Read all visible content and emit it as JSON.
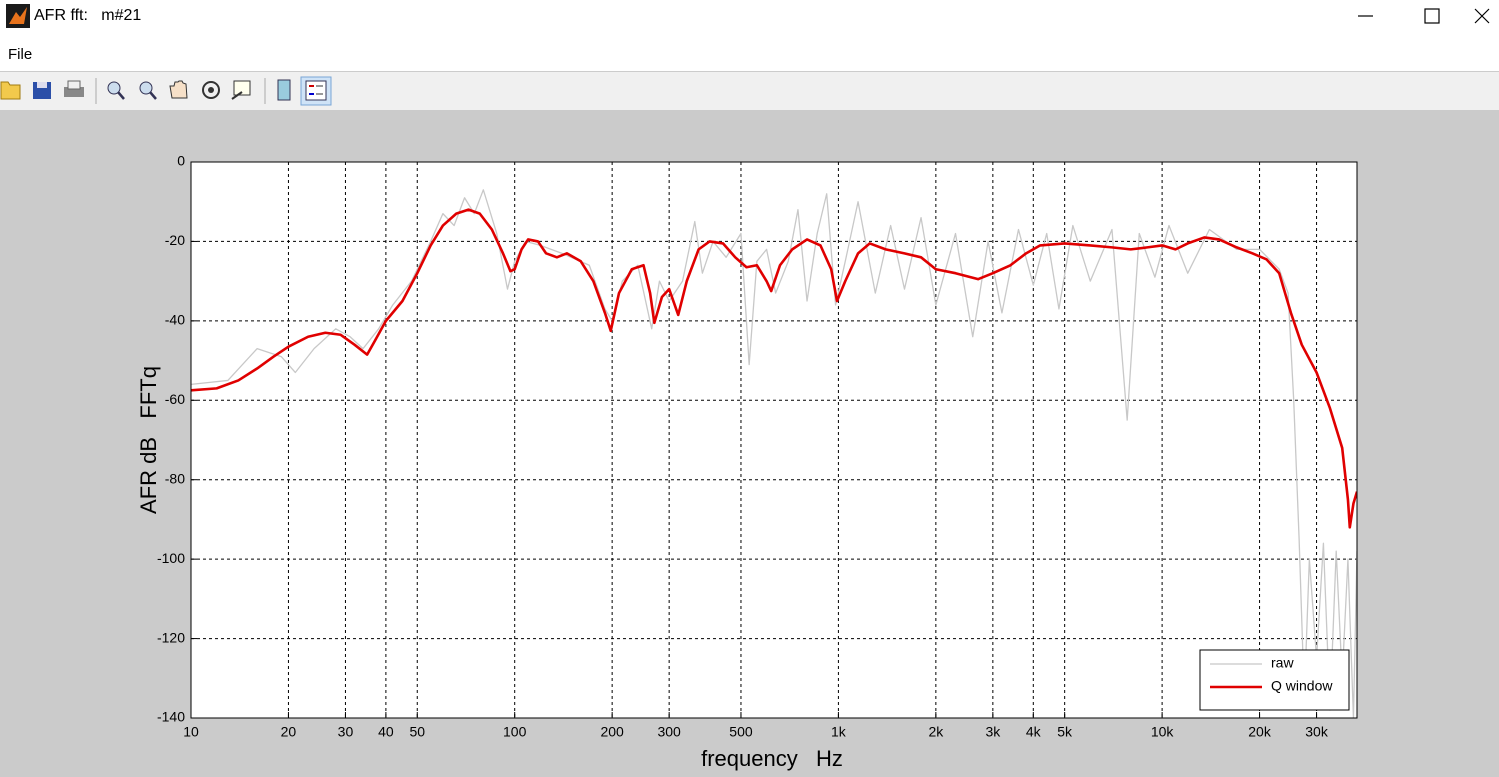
{
  "window": {
    "title": "AFR fft:   m#21",
    "menu": [
      "File"
    ]
  },
  "chart_data": {
    "type": "line",
    "xlabel": "frequency   Hz",
    "ylabel": "AFR dB   FFTq",
    "xscale": "log",
    "grid": true,
    "legend": "lower right",
    "xlim": [
      10,
      40000
    ],
    "ylim": [
      -140,
      0
    ],
    "xticks": [
      10,
      20,
      30,
      40,
      50,
      100,
      200,
      300,
      500,
      {
        "value": 1000,
        "label": "1k"
      },
      {
        "value": 2000,
        "label": "2k"
      },
      {
        "value": 3000,
        "label": "3k"
      },
      {
        "value": 4000,
        "label": "4k"
      },
      {
        "value": 5000,
        "label": "5k"
      },
      {
        "value": 10000,
        "label": "10k"
      },
      {
        "value": 20000,
        "label": "20k"
      },
      {
        "value": 30000,
        "label": "30k"
      }
    ],
    "yticks": [
      0,
      -20,
      -40,
      -60,
      -80,
      -100,
      -120,
      -140
    ],
    "series": [
      {
        "name": "raw",
        "color": "#c8c8c8",
        "x": [
          10,
          13,
          16,
          19,
          21,
          24,
          28,
          31,
          34,
          38,
          42,
          48,
          55,
          60,
          65,
          70,
          75,
          80,
          88,
          95,
          100,
          108,
          120,
          140,
          170,
          190,
          200,
          215,
          240,
          265,
          280,
          300,
          330,
          360,
          380,
          410,
          450,
          500,
          530,
          560,
          600,
          640,
          700,
          750,
          800,
          860,
          920,
          980,
          1050,
          1150,
          1300,
          1450,
          1600,
          1800,
          2000,
          2300,
          2600,
          2900,
          3200,
          3600,
          4000,
          4400,
          4800,
          5300,
          6000,
          7000,
          7800,
          8500,
          9500,
          10500,
          12000,
          14000,
          17000,
          20000,
          23000,
          24500,
          25500,
          26500,
          27500,
          28500,
          30000,
          31500,
          33000,
          34500,
          36000,
          37500,
          39000,
          40000
        ],
        "values": [
          -56,
          -55,
          -47,
          -49,
          -53,
          -47,
          -42,
          -44,
          -47,
          -42,
          -36,
          -30,
          -20,
          -13,
          -16,
          -9,
          -13,
          -7,
          -18,
          -32,
          -25,
          -20,
          -21,
          -23,
          -26,
          -37,
          -40,
          -30,
          -26,
          -42,
          -30,
          -35,
          -30,
          -15,
          -28,
          -20,
          -24,
          -18,
          -51,
          -25,
          -22,
          -33,
          -25,
          -12,
          -35,
          -18,
          -8,
          -36,
          -25,
          -10,
          -33,
          -16,
          -32,
          -14,
          -36,
          -18,
          -44,
          -20,
          -38,
          -17,
          -31,
          -18,
          -37,
          -16,
          -30,
          -17,
          -65,
          -18,
          -29,
          -16,
          -28,
          -17,
          -22,
          -22,
          -27,
          -33,
          -60,
          -95,
          -135,
          -100,
          -125,
          -96,
          -138,
          -98,
          -130,
          -100,
          -140,
          -98
        ]
      },
      {
        "name": "Q window",
        "color": "#e00000",
        "x": [
          10,
          12,
          14,
          16,
          18,
          20,
          23,
          26,
          29,
          32,
          35,
          37,
          40,
          45,
          50,
          55,
          60,
          66,
          72,
          78,
          85,
          92,
          97,
          100,
          105,
          110,
          118,
          125,
          135,
          145,
          160,
          175,
          190,
          198,
          210,
          230,
          250,
          262,
          270,
          285,
          300,
          320,
          340,
          370,
          400,
          440,
          480,
          520,
          560,
          600,
          620,
          660,
          720,
          800,
          880,
          950,
          990,
          1050,
          1150,
          1250,
          1400,
          1600,
          1800,
          2000,
          2300,
          2700,
          3000,
          3400,
          3800,
          4200,
          5000,
          6000,
          7000,
          8000,
          9000,
          10000,
          11000,
          12000,
          13500,
          15000,
          17000,
          19000,
          21000,
          23000,
          25000,
          27000,
          30000,
          33000,
          36000,
          37500,
          38000,
          39000,
          40000
        ],
        "values": [
          -57.5,
          -57,
          -55,
          -52,
          -49,
          -46.5,
          -44,
          -43,
          -43.5,
          -46,
          -48.5,
          -45,
          -40,
          -35,
          -28,
          -21,
          -16,
          -13,
          -12,
          -13,
          -17,
          -23,
          -27.5,
          -27,
          -22,
          -19.5,
          -20,
          -23,
          -24,
          -23,
          -25,
          -30,
          -38,
          -42.5,
          -33,
          -27,
          -26,
          -33,
          -40.5,
          -34,
          -32,
          -38.5,
          -30,
          -22,
          -20,
          -20.5,
          -24,
          -26.5,
          -26,
          -30,
          -32.5,
          -26,
          -22,
          -19.5,
          -21,
          -27,
          -35,
          -30,
          -23,
          -20.5,
          -22,
          -23,
          -24,
          -27,
          -28,
          -29.5,
          -28,
          -26,
          -23,
          -21,
          -20.5,
          -21,
          -21.5,
          -22,
          -21.5,
          -21,
          -22,
          -20.5,
          -19,
          -19.5,
          -21.5,
          -23,
          -24.5,
          -28,
          -38,
          -46,
          -53,
          -62,
          -72,
          -85,
          -92,
          -86,
          -83
        ]
      }
    ]
  }
}
